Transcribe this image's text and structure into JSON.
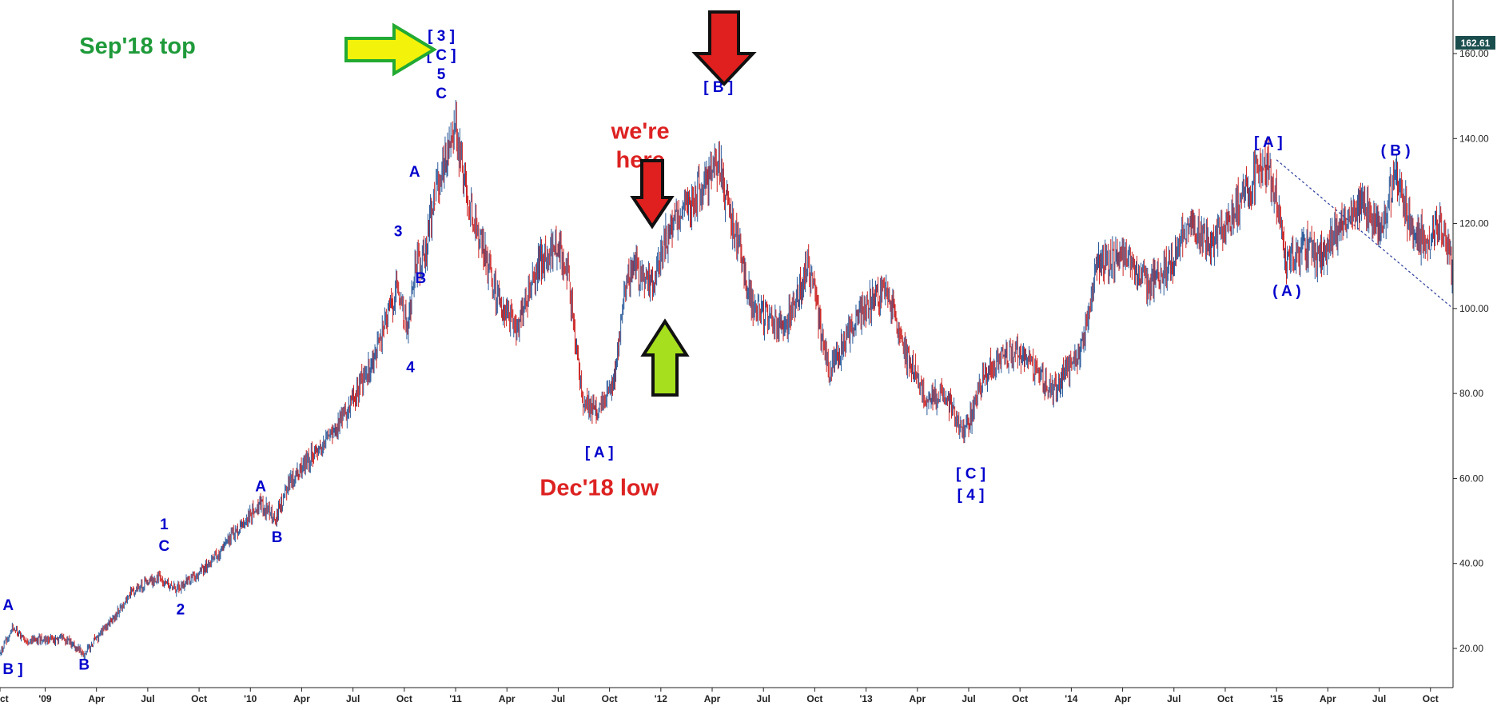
{
  "chart_data": {
    "type": "ohlc",
    "title": "",
    "xlabel": "",
    "ylabel": "",
    "ylim": [
      12,
      170
    ],
    "y_ticks": [
      20,
      40,
      60,
      80,
      100,
      120,
      140,
      160
    ],
    "y_tick_labels": [
      "20.00",
      "40.00",
      "60.00",
      "80.00",
      "100.00",
      "120.00",
      "140.00",
      "160.00"
    ],
    "last_price_label": "162.61",
    "last_price": 162.61,
    "x_tick_labels": [
      "ct",
      "'09",
      "Apr",
      "Jul",
      "Oct",
      "'10",
      "Apr",
      "Jul",
      "Oct",
      "'11",
      "Apr",
      "Jul",
      "Oct",
      "'12",
      "Apr",
      "Jul",
      "Oct",
      "'13",
      "Apr",
      "Jul",
      "Oct",
      "'14",
      "Apr",
      "Jul",
      "Oct",
      "'15",
      "Apr",
      "Jul",
      "Oct"
    ],
    "x_tick_times": [
      2008.78,
      2009.0,
      2009.25,
      2009.5,
      2009.75,
      2010.0,
      2010.25,
      2010.5,
      2010.75,
      2011.0,
      2011.25,
      2011.5,
      2011.75,
      2012.0,
      2012.25,
      2012.5,
      2012.75,
      2013.0,
      2013.25,
      2013.5,
      2013.75,
      2014.0,
      2014.25,
      2014.5,
      2014.75,
      2015.0,
      2015.25,
      2015.5,
      2015.75
    ],
    "x_range": [
      2008.78,
      2015.86
    ],
    "grid": false,
    "colors": {
      "up": "#2a5a9a",
      "down": "#cc2222",
      "label": "#0000cc",
      "badge": "#1a4d4d"
    },
    "price_path": [
      [
        2008.78,
        19
      ],
      [
        2008.84,
        25
      ],
      [
        2008.9,
        22
      ],
      [
        2009.0,
        22
      ],
      [
        2009.1,
        22
      ],
      [
        2009.19,
        19
      ],
      [
        2009.3,
        25
      ],
      [
        2009.42,
        33
      ],
      [
        2009.55,
        37
      ],
      [
        2009.6,
        35
      ],
      [
        2009.65,
        34
      ],
      [
        2009.8,
        40
      ],
      [
        2009.9,
        46
      ],
      [
        2010.05,
        54
      ],
      [
        2010.1,
        52
      ],
      [
        2010.12,
        50
      ],
      [
        2010.2,
        60
      ],
      [
        2010.35,
        68
      ],
      [
        2010.5,
        78
      ],
      [
        2010.6,
        88
      ],
      [
        2010.72,
        106
      ],
      [
        2010.77,
        95
      ],
      [
        2010.8,
        110
      ],
      [
        2010.85,
        112
      ],
      [
        2010.9,
        128
      ],
      [
        2011.0,
        143
      ],
      [
        2011.05,
        128
      ],
      [
        2011.1,
        120
      ],
      [
        2011.2,
        103
      ],
      [
        2011.3,
        95
      ],
      [
        2011.4,
        110
      ],
      [
        2011.5,
        116
      ],
      [
        2011.55,
        107
      ],
      [
        2011.62,
        78
      ],
      [
        2011.7,
        75
      ],
      [
        2011.78,
        85
      ],
      [
        2011.82,
        105
      ],
      [
        2011.88,
        110
      ],
      [
        2011.95,
        105
      ],
      [
        2012.05,
        120
      ],
      [
        2012.15,
        125
      ],
      [
        2012.28,
        135
      ],
      [
        2012.35,
        120
      ],
      [
        2012.45,
        100
      ],
      [
        2012.6,
        95
      ],
      [
        2012.72,
        110
      ],
      [
        2012.82,
        85
      ],
      [
        2012.95,
        98
      ],
      [
        2013.1,
        105
      ],
      [
        2013.2,
        88
      ],
      [
        2013.3,
        78
      ],
      [
        2013.38,
        80
      ],
      [
        2013.48,
        70
      ],
      [
        2013.58,
        85
      ],
      [
        2013.7,
        90
      ],
      [
        2013.8,
        88
      ],
      [
        2013.9,
        80
      ],
      [
        2014.05,
        90
      ],
      [
        2014.12,
        110
      ],
      [
        2014.25,
        112
      ],
      [
        2014.38,
        106
      ],
      [
        2014.48,
        110
      ],
      [
        2014.58,
        120
      ],
      [
        2014.68,
        115
      ],
      [
        2014.75,
        118
      ],
      [
        2014.85,
        128
      ],
      [
        2014.96,
        135
      ],
      [
        2015.02,
        120
      ],
      [
        2015.05,
        110
      ],
      [
        2015.12,
        115
      ],
      [
        2015.22,
        112
      ],
      [
        2015.32,
        120
      ],
      [
        2015.42,
        125
      ],
      [
        2015.5,
        118
      ],
      [
        2015.58,
        132
      ],
      [
        2015.65,
        120
      ],
      [
        2015.72,
        115
      ],
      [
        2015.8,
        120
      ],
      [
        2015.86,
        108
      ]
    ],
    "trendline": {
      "start": [
        2015.0,
        135
      ],
      "end": [
        2015.86,
        100
      ]
    },
    "wave_labels": [
      {
        "text": "A",
        "t": 2008.82,
        "v": 29
      },
      {
        "text": "[ B ]",
        "t": 2008.82,
        "v": 14
      },
      {
        "text": "B",
        "t": 2009.19,
        "v": 15
      },
      {
        "text": "1",
        "t": 2009.58,
        "v": 48
      },
      {
        "text": "C",
        "t": 2009.58,
        "v": 43
      },
      {
        "text": "2",
        "t": 2009.66,
        "v": 28
      },
      {
        "text": "A",
        "t": 2010.05,
        "v": 57
      },
      {
        "text": "B",
        "t": 2010.13,
        "v": 45
      },
      {
        "text": "3",
        "t": 2010.72,
        "v": 117
      },
      {
        "text": "4",
        "t": 2010.78,
        "v": 85
      },
      {
        "text": "A",
        "t": 2010.8,
        "v": 131
      },
      {
        "text": "B",
        "t": 2010.83,
        "v": 106
      },
      {
        "text": "[ 3 ]",
        "t": 2010.93,
        "v": 163
      },
      {
        "text": "[ C ]",
        "t": 2010.93,
        "v": 158.5
      },
      {
        "text": "5",
        "t": 2010.93,
        "v": 154
      },
      {
        "text": "C",
        "t": 2010.93,
        "v": 149.5
      },
      {
        "text": "[ A ]",
        "t": 2011.7,
        "v": 65
      },
      {
        "text": "[ B ]",
        "t": 2012.28,
        "v": 151
      },
      {
        "text": "[ C ]",
        "t": 2013.51,
        "v": 60
      },
      {
        "text": "[ 4 ]",
        "t": 2013.51,
        "v": 55
      },
      {
        "text": "[ A ]",
        "t": 2014.96,
        "v": 138
      },
      {
        "text": "( A )",
        "t": 2015.05,
        "v": 103
      },
      {
        "text": "( B )",
        "t": 2015.58,
        "v": 136
      }
    ],
    "annotations": [
      {
        "id": "sep18-top",
        "text": "Sep'18 top",
        "color": "#1f9a3a",
        "t": 2009.45,
        "v": 160
      },
      {
        "id": "we-are-here",
        "lines": [
          "we're",
          "here"
        ],
        "color": "#dd2222",
        "t": 2011.9,
        "v": 140
      },
      {
        "id": "dec18-low",
        "text": "Dec'18 low",
        "color": "#dd2222",
        "t": 2011.7,
        "v": 56
      }
    ],
    "arrows": [
      {
        "id": "sep18-arrow",
        "direction": "right",
        "fill": "#f2f20a",
        "stroke": "#22aa33"
      },
      {
        "id": "we-are-here-arrow",
        "direction": "down",
        "fill": "#e0201e",
        "stroke": "#111111"
      },
      {
        "id": "b-top-arrow",
        "direction": "down",
        "fill": "#e0201e",
        "stroke": "#111111"
      },
      {
        "id": "green-up-arrow",
        "direction": "up",
        "fill": "#a6df1e",
        "stroke": "#111111"
      }
    ]
  }
}
